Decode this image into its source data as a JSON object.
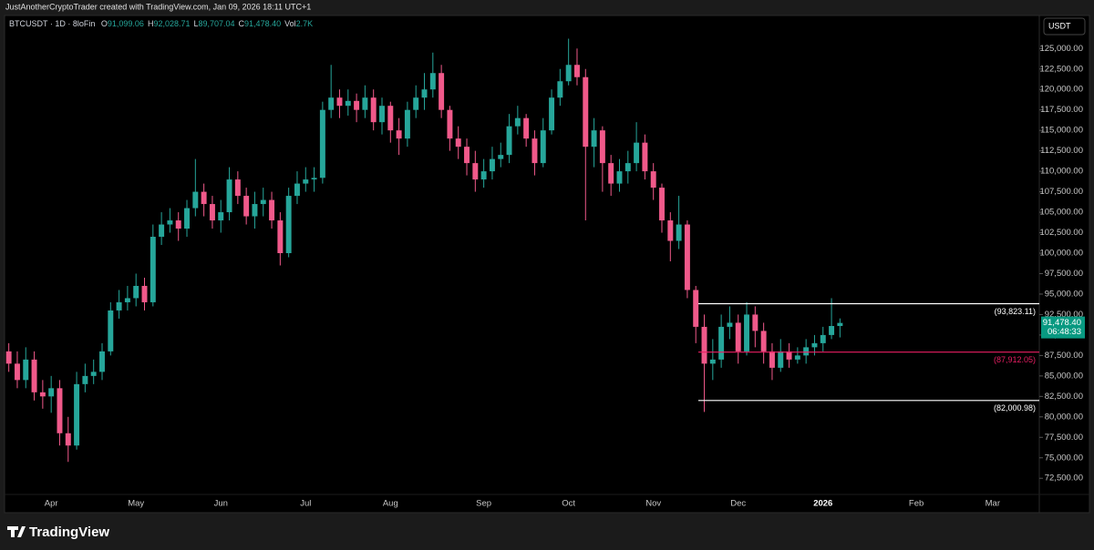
{
  "header": {
    "credit": "JustAnotherCryptoTrader created with TradingView.com, Jan 09, 2026 18:11 UTC+1",
    "symbol": "BTCUSDT · 1D · 8loFin",
    "ohlc": [
      {
        "key": "O",
        "value": "91,099.06"
      },
      {
        "key": "H",
        "value": "92,028.71"
      },
      {
        "key": "L",
        "value": "89,707.04"
      },
      {
        "key": "C",
        "value": "91,478.40"
      },
      {
        "key": "Vol",
        "value": "2.7K"
      }
    ]
  },
  "currency": "USDT",
  "footer": {
    "brand": "TradingView"
  },
  "chart_data": {
    "type": "candlestick",
    "up_color": "#26a69a",
    "down_color": "#f0598a",
    "categories": [
      null,
      null,
      null,
      null,
      null,
      "Apr",
      null,
      null,
      null,
      null,
      null,
      null,
      null,
      null,
      null,
      "May",
      null,
      null,
      null,
      null,
      null,
      null,
      null,
      null,
      null,
      "Jun",
      null,
      null,
      null,
      null,
      null,
      null,
      null,
      null,
      null,
      "Jul",
      null,
      null,
      null,
      null,
      null,
      null,
      null,
      null,
      null,
      "Aug",
      null,
      null,
      null,
      null,
      null,
      null,
      null,
      null,
      null,
      null,
      "Sep",
      null,
      null,
      null,
      null,
      null,
      null,
      null,
      null,
      null,
      "Oct",
      null,
      null,
      null,
      null,
      null,
      null,
      null,
      null,
      null,
      "Nov",
      null,
      null,
      null,
      null,
      null,
      null,
      null,
      null,
      null,
      "Dec",
      null,
      null,
      null,
      null,
      null,
      null,
      null,
      null,
      null,
      "2026",
      null,
      null,
      null,
      null,
      null,
      null,
      null,
      null,
      null,
      null,
      "Feb",
      null,
      null,
      null,
      null,
      null,
      null,
      null,
      null,
      "Mar",
      null,
      null,
      null,
      null,
      null
    ],
    "open": [
      88000,
      86500,
      84500,
      87000,
      83000,
      82500,
      83500,
      78000,
      76500,
      84000,
      85000,
      85500,
      88000,
      93000,
      94000,
      94500,
      96000,
      94000,
      102000,
      103500,
      104000,
      103000,
      105500,
      107500,
      106000,
      104000,
      105000,
      109000,
      107000,
      104500,
      106000,
      106500,
      104000,
      100000,
      107000,
      108500,
      109000,
      109200,
      117500,
      119000,
      118000,
      118600,
      117500,
      119000,
      116000,
      118000,
      115000,
      114000,
      117500,
      119000,
      120000,
      122000,
      117500,
      114000,
      113000,
      111000,
      109000,
      110000,
      111500,
      112000,
      115500,
      116500,
      114000,
      111000,
      115000,
      119000,
      121000,
      123000,
      121500,
      113000,
      115000,
      111000,
      108500,
      110000,
      111000,
      113500,
      110000,
      108000,
      104000,
      101500,
      103500,
      95500,
      91000,
      86500,
      87000,
      91000,
      91500,
      88000,
      92500,
      90500,
      88000,
      86000,
      88000,
      87000,
      87500,
      88500,
      89000,
      90000,
      91099.06,
      null,
      null,
      null,
      null,
      null,
      null,
      null,
      null,
      null,
      null,
      null,
      null,
      null,
      null,
      null,
      null,
      null,
      null,
      null,
      null,
      null,
      null,
      null
    ],
    "high": [
      89000,
      88000,
      88500,
      88000,
      84500,
      85000,
      84500,
      80000,
      85500,
      86500,
      87000,
      89000,
      94000,
      95500,
      96000,
      97500,
      97000,
      103500,
      105000,
      105500,
      105000,
      106500,
      111500,
      108500,
      107000,
      106500,
      110500,
      110000,
      108000,
      107500,
      108000,
      107500,
      105000,
      108000,
      110000,
      110500,
      110500,
      118500,
      123000,
      120000,
      120000,
      119500,
      120500,
      120000,
      119000,
      118500,
      116500,
      118500,
      120500,
      122000,
      124500,
      123000,
      118000,
      115500,
      114000,
      112500,
      111500,
      113000,
      113500,
      117000,
      118000,
      117000,
      115000,
      116500,
      120000,
      122500,
      126200,
      125000,
      122500,
      116500,
      115500,
      112000,
      111500,
      112500,
      116000,
      114500,
      111000,
      108500,
      105000,
      107000,
      104000,
      96000,
      92500,
      89500,
      92500,
      93500,
      92500,
      94000,
      93500,
      91500,
      89000,
      89500,
      89000,
      88500,
      89500,
      90000,
      91000,
      94500,
      92028.71,
      null,
      null,
      null,
      null,
      null,
      null,
      null,
      null,
      null,
      null,
      null,
      null,
      null,
      null,
      null,
      null,
      null,
      null,
      null,
      null,
      null,
      null,
      null
    ],
    "low": [
      85500,
      83500,
      83500,
      82000,
      81000,
      80500,
      76500,
      74500,
      76000,
      83000,
      84000,
      84500,
      87500,
      92000,
      93000,
      93500,
      93000,
      93500,
      101000,
      102500,
      101500,
      102000,
      104500,
      104500,
      103000,
      102500,
      104000,
      106000,
      103500,
      103000,
      104500,
      103000,
      98500,
      99500,
      106000,
      107500,
      107500,
      108500,
      116500,
      116500,
      116800,
      116000,
      116500,
      115000,
      114500,
      113500,
      112000,
      113000,
      116500,
      117500,
      119000,
      116500,
      112500,
      111500,
      109500,
      107500,
      108000,
      109000,
      110500,
      111000,
      114500,
      113000,
      109500,
      110500,
      114500,
      118000,
      120500,
      120500,
      104000,
      110500,
      107500,
      107000,
      107500,
      108500,
      110000,
      109000,
      106500,
      102500,
      99000,
      100500,
      94500,
      89000,
      80600,
      84500,
      86000,
      89500,
      86500,
      87500,
      88500,
      86500,
      84500,
      85500,
      86000,
      86500,
      86500,
      87500,
      88000,
      89500,
      89707.04,
      null,
      null,
      null,
      null,
      null,
      null,
      null,
      null,
      null,
      null,
      null,
      null,
      null,
      null,
      null,
      null,
      null,
      null,
      null,
      null,
      null,
      null,
      null
    ],
    "close": [
      86500,
      84500,
      87000,
      83000,
      82500,
      83500,
      78000,
      76500,
      84000,
      85000,
      85500,
      88000,
      93000,
      94000,
      94500,
      96000,
      94000,
      102000,
      103500,
      104000,
      103000,
      105500,
      107500,
      106000,
      104000,
      105000,
      109000,
      107000,
      104500,
      106000,
      106500,
      104000,
      100000,
      107000,
      108500,
      109000,
      109200,
      117500,
      119000,
      118000,
      118600,
      117500,
      119000,
      116000,
      118000,
      115000,
      114000,
      117500,
      119000,
      120000,
      122000,
      117500,
      114000,
      113000,
      111000,
      109000,
      110000,
      111500,
      112000,
      115500,
      116500,
      114000,
      111000,
      115000,
      119000,
      121000,
      123000,
      121500,
      113000,
      115000,
      111000,
      108500,
      110000,
      111000,
      113500,
      110000,
      108000,
      104000,
      101500,
      103500,
      95500,
      91000,
      86500,
      87000,
      91000,
      91500,
      88000,
      92500,
      90500,
      88000,
      86000,
      88000,
      87000,
      87500,
      88500,
      89000,
      90000,
      91100,
      91478.4,
      null,
      null,
      null,
      null,
      null,
      null,
      null,
      null,
      null,
      null,
      null,
      null,
      null,
      null,
      null,
      null,
      null,
      null,
      null,
      null,
      null,
      null,
      null
    ],
    "ylim": [
      70300,
      128700
    ],
    "yticks": [
      {
        "value": 72500,
        "label": "72,500.00"
      },
      {
        "value": 75000,
        "label": "75,000.00"
      },
      {
        "value": 77500,
        "label": "77,500.00"
      },
      {
        "value": 80000,
        "label": "80,000.00"
      },
      {
        "value": 82500,
        "label": "82,500.00"
      },
      {
        "value": 85000,
        "label": "85,000.00"
      },
      {
        "value": 87500,
        "label": "87,500.00"
      },
      {
        "value": 90000,
        "label": "90,000.00"
      },
      {
        "value": 92500,
        "label": "92,500.00"
      },
      {
        "value": 95000,
        "label": "95,000.00"
      },
      {
        "value": 97500,
        "label": "97,500.00"
      },
      {
        "value": 100000,
        "label": "100,000.00"
      },
      {
        "value": 102500,
        "label": "102,500.00"
      },
      {
        "value": 105000,
        "label": "105,000.00"
      },
      {
        "value": 107500,
        "label": "107,500.00"
      },
      {
        "value": 110000,
        "label": "110,000.00"
      },
      {
        "value": 112500,
        "label": "112,500.00"
      },
      {
        "value": 115000,
        "label": "115,000.00"
      },
      {
        "value": 117500,
        "label": "117,500.00"
      },
      {
        "value": 120000,
        "label": "120,000.00"
      },
      {
        "value": 122500,
        "label": "122,500.00"
      },
      {
        "value": 125000,
        "label": "125,000.00"
      }
    ],
    "grid": false,
    "levels": [
      {
        "value": 93823.11,
        "label": "(93,823.11)",
        "color": "#ffffff"
      },
      {
        "value": 87912.05,
        "label": "(87,912.05)",
        "color": "#e91e63"
      },
      {
        "value": 82000.98,
        "label": "(82,000.98)",
        "color": "#ffffff"
      }
    ],
    "last_price": {
      "value": 91478.4,
      "label": "91,478.40",
      "countdown": "06:48:33",
      "color": "#089981"
    }
  }
}
